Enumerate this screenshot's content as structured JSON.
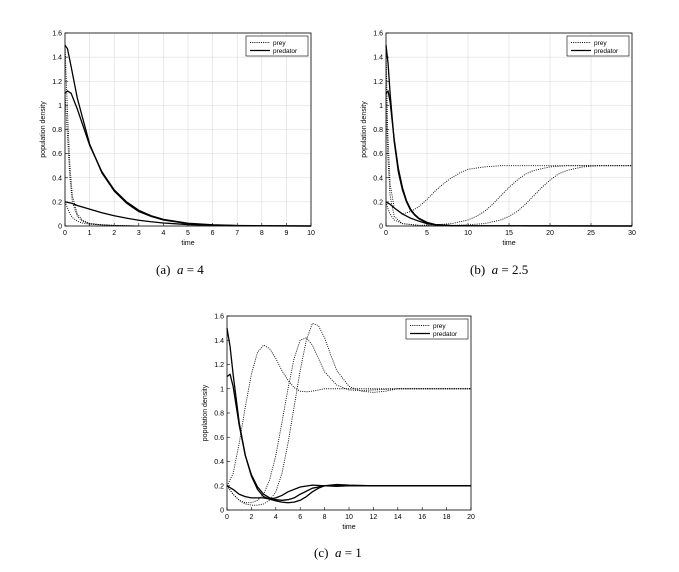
{
  "figure": {
    "panels": [
      {
        "caption": {
          "label": "(a)",
          "variable": "a",
          "eq": "=",
          "value": "4"
        }
      },
      {
        "caption": {
          "label": "(b)",
          "variable": "a",
          "eq": "=",
          "value": "2.5"
        }
      },
      {
        "caption": {
          "label": "(c)",
          "variable": "a",
          "eq": "=",
          "value": "1"
        }
      }
    ]
  },
  "chart_data": [
    {
      "type": "line",
      "title": "",
      "xlabel": "time",
      "ylabel": "population density",
      "xlim": [
        0,
        10
      ],
      "ylim": [
        0,
        1.6
      ],
      "xticks": [
        "0",
        "1",
        "2",
        "3",
        "4",
        "5",
        "6",
        "7",
        "8",
        "9",
        "10"
      ],
      "yticks": [
        "0",
        "0.2",
        "0.4",
        "0.6",
        "0.8",
        "1",
        "1.2",
        "1.4",
        "1.6"
      ],
      "grid": true,
      "legend": {
        "position": "top-right",
        "entries": [
          {
            "name": "prey",
            "style": "dotted"
          },
          {
            "name": "predator",
            "style": "solid"
          }
        ]
      },
      "series": [
        {
          "name": "prey",
          "style": "dotted",
          "x": [
            0,
            0.1,
            0.2,
            0.3,
            0.5,
            0.7,
            1,
            1.5,
            2,
            3
          ],
          "y": [
            1.5,
            0.95,
            0.5,
            0.25,
            0.1,
            0.05,
            0.02,
            0.01,
            0.005,
            0
          ]
        },
        {
          "name": "prey",
          "style": "dotted",
          "x": [
            0,
            0.1,
            0.2,
            0.3,
            0.5,
            0.7,
            1,
            1.5,
            2,
            3
          ],
          "y": [
            1.1,
            0.75,
            0.4,
            0.2,
            0.08,
            0.04,
            0.02,
            0.01,
            0.005,
            0
          ]
        },
        {
          "name": "prey",
          "style": "dotted",
          "x": [
            0,
            0.1,
            0.2,
            0.3,
            0.5,
            0.7,
            1,
            1.5,
            2,
            3
          ],
          "y": [
            0.2,
            0.15,
            0.1,
            0.07,
            0.04,
            0.025,
            0.015,
            0.008,
            0.004,
            0
          ]
        },
        {
          "name": "predator",
          "style": "solid",
          "x": [
            0,
            0.1,
            0.25,
            0.5,
            1,
            1.5,
            2,
            2.5,
            3,
            3.5,
            4,
            5,
            6,
            7,
            8,
            10
          ],
          "y": [
            1.5,
            1.47,
            1.32,
            1.06,
            0.68,
            0.44,
            0.29,
            0.19,
            0.12,
            0.08,
            0.05,
            0.02,
            0.008,
            0.003,
            0.001,
            0
          ]
        },
        {
          "name": "predator",
          "style": "solid",
          "x": [
            0,
            0.1,
            0.25,
            0.5,
            1,
            1.5,
            2,
            2.5,
            3,
            3.5,
            4,
            5,
            6,
            7,
            8,
            10
          ],
          "y": [
            1.1,
            1.12,
            1.1,
            0.97,
            0.67,
            0.45,
            0.3,
            0.2,
            0.13,
            0.085,
            0.055,
            0.023,
            0.01,
            0.004,
            0.002,
            0
          ]
        },
        {
          "name": "predator",
          "style": "solid",
          "x": [
            0,
            0.25,
            0.5,
            1,
            1.5,
            2,
            2.5,
            3,
            3.5,
            4,
            5,
            6,
            7,
            8,
            10
          ],
          "y": [
            0.2,
            0.19,
            0.17,
            0.14,
            0.11,
            0.085,
            0.065,
            0.048,
            0.035,
            0.025,
            0.012,
            0.006,
            0.003,
            0.001,
            0
          ]
        }
      ]
    },
    {
      "type": "line",
      "title": "",
      "xlabel": "time",
      "ylabel": "population density",
      "xlim": [
        0,
        30
      ],
      "ylim": [
        0,
        1.6
      ],
      "xticks": [
        "0",
        "5",
        "10",
        "15",
        "20",
        "25",
        "30"
      ],
      "yticks": [
        "0",
        "0.2",
        "0.4",
        "0.6",
        "0.8",
        "1",
        "1.2",
        "1.4",
        "1.6"
      ],
      "grid": true,
      "legend": {
        "position": "top-right",
        "entries": [
          {
            "name": "prey",
            "style": "dotted"
          },
          {
            "name": "predator",
            "style": "solid"
          }
        ]
      },
      "series": [
        {
          "name": "prey",
          "style": "dotted",
          "x": [
            0,
            0.2,
            0.5,
            1,
            2,
            3,
            4,
            5,
            6,
            7,
            8,
            9,
            10,
            11,
            12,
            14,
            16,
            18,
            20,
            25,
            30
          ],
          "y": [
            1.5,
            0.8,
            0.35,
            0.15,
            0.1,
            0.12,
            0.16,
            0.22,
            0.29,
            0.35,
            0.4,
            0.44,
            0.47,
            0.48,
            0.49,
            0.5,
            0.5,
            0.5,
            0.5,
            0.5,
            0.5
          ]
        },
        {
          "name": "prey",
          "style": "dotted",
          "x": [
            0,
            0.2,
            0.5,
            1,
            2,
            4,
            6,
            8,
            10,
            11,
            12,
            13,
            14,
            15,
            16,
            17,
            18,
            20,
            22,
            25,
            30
          ],
          "y": [
            1.1,
            0.6,
            0.25,
            0.08,
            0.02,
            0.005,
            0.01,
            0.02,
            0.05,
            0.08,
            0.12,
            0.18,
            0.25,
            0.32,
            0.38,
            0.43,
            0.46,
            0.49,
            0.5,
            0.5,
            0.5
          ]
        },
        {
          "name": "prey",
          "style": "dotted",
          "x": [
            0,
            0.2,
            0.5,
            1,
            2,
            4,
            6,
            8,
            10,
            12,
            14,
            15,
            16,
            17,
            18,
            19,
            20,
            21,
            22,
            24,
            26,
            30
          ],
          "y": [
            0.2,
            0.15,
            0.1,
            0.05,
            0.02,
            0.005,
            0.003,
            0.005,
            0.01,
            0.02,
            0.05,
            0.08,
            0.12,
            0.18,
            0.25,
            0.32,
            0.38,
            0.43,
            0.46,
            0.49,
            0.5,
            0.5
          ]
        },
        {
          "name": "predator",
          "style": "solid",
          "x": [
            0,
            0.25,
            0.5,
            1,
            1.5,
            2,
            2.5,
            3,
            3.5,
            4,
            5,
            6,
            8,
            10,
            30
          ],
          "y": [
            1.5,
            1.35,
            1.1,
            0.7,
            0.45,
            0.3,
            0.2,
            0.13,
            0.09,
            0.06,
            0.025,
            0.01,
            0.003,
            0.001,
            0
          ]
        },
        {
          "name": "predator",
          "style": "solid",
          "x": [
            0,
            0.25,
            0.5,
            1,
            1.5,
            2,
            2.5,
            3,
            3.5,
            4,
            5,
            6,
            8,
            10,
            30
          ],
          "y": [
            1.1,
            1.12,
            1.03,
            0.72,
            0.48,
            0.32,
            0.21,
            0.14,
            0.095,
            0.065,
            0.03,
            0.012,
            0.003,
            0.001,
            0
          ]
        },
        {
          "name": "predator",
          "style": "solid",
          "x": [
            0,
            0.5,
            1,
            2,
            3,
            4,
            5,
            6,
            8,
            10,
            30
          ],
          "y": [
            0.2,
            0.18,
            0.15,
            0.1,
            0.065,
            0.04,
            0.02,
            0.01,
            0.003,
            0.001,
            0
          ]
        }
      ]
    },
    {
      "type": "line",
      "title": "",
      "xlabel": "time",
      "ylabel": "population density",
      "xlim": [
        0,
        20
      ],
      "ylim": [
        0,
        1.6
      ],
      "xticks": [
        "0",
        "2",
        "4",
        "6",
        "8",
        "10",
        "12",
        "14",
        "16",
        "18",
        "20"
      ],
      "yticks": [
        "0",
        "0.2",
        "0.4",
        "0.6",
        "0.8",
        "1",
        "1.2",
        "1.4",
        "1.6"
      ],
      "grid": false,
      "legend": {
        "position": "top-right",
        "entries": [
          {
            "name": "prey",
            "style": "dotted"
          },
          {
            "name": "predator",
            "style": "solid"
          }
        ]
      },
      "series": [
        {
          "name": "prey",
          "style": "dotted",
          "x": [
            0,
            0.5,
            1,
            1.5,
            2,
            2.5,
            3,
            3.5,
            4,
            4.5,
            5,
            5.5,
            6,
            6.5,
            7,
            7.5,
            8,
            9,
            10,
            12,
            14,
            16,
            20
          ],
          "y": [
            0.2,
            0.3,
            0.55,
            0.85,
            1.12,
            1.3,
            1.36,
            1.33,
            1.25,
            1.15,
            1.07,
            1.01,
            0.98,
            0.975,
            0.98,
            0.99,
            1.0,
            1.0,
            1.0,
            1.0,
            1.0,
            1.0,
            1.0
          ]
        },
        {
          "name": "prey",
          "style": "dotted",
          "x": [
            0,
            0.5,
            1,
            1.5,
            2,
            2.5,
            3,
            3.5,
            4,
            4.5,
            5,
            5.5,
            6,
            6.5,
            7,
            7.5,
            8,
            9,
            10,
            11,
            12,
            14,
            20
          ],
          "y": [
            0.2,
            0.13,
            0.08,
            0.06,
            0.06,
            0.08,
            0.13,
            0.25,
            0.45,
            0.72,
            1.0,
            1.25,
            1.4,
            1.42,
            1.36,
            1.25,
            1.14,
            1.03,
            0.99,
            0.985,
            0.99,
            1.0,
            1.0
          ]
        },
        {
          "name": "prey",
          "style": "dotted",
          "x": [
            0,
            0.5,
            1,
            1.5,
            2,
            2.5,
            3,
            3.5,
            4,
            4.5,
            5,
            5.5,
            6,
            6.5,
            7,
            7.5,
            8,
            8.5,
            9,
            10,
            11,
            12,
            13,
            14,
            20
          ],
          "y": [
            0.2,
            0.13,
            0.08,
            0.05,
            0.04,
            0.04,
            0.05,
            0.08,
            0.15,
            0.3,
            0.55,
            0.85,
            1.15,
            1.4,
            1.54,
            1.52,
            1.42,
            1.28,
            1.15,
            1.02,
            0.98,
            0.97,
            0.98,
            1.0,
            1.0
          ]
        },
        {
          "name": "predator",
          "style": "solid",
          "x": [
            0,
            0.25,
            0.5,
            1,
            1.5,
            2,
            2.5,
            3,
            3.5,
            4,
            4.5,
            5,
            6,
            7,
            8,
            9,
            10,
            12,
            14,
            20
          ],
          "y": [
            1.5,
            1.35,
            1.12,
            0.72,
            0.45,
            0.28,
            0.17,
            0.11,
            0.09,
            0.1,
            0.12,
            0.15,
            0.19,
            0.205,
            0.2,
            0.195,
            0.2,
            0.2,
            0.2,
            0.2
          ]
        },
        {
          "name": "predator",
          "style": "solid",
          "x": [
            0,
            0.25,
            0.5,
            1,
            1.5,
            2,
            2.5,
            3,
            3.5,
            4,
            4.5,
            5,
            5.5,
            6,
            7,
            8,
            9,
            10,
            12,
            14,
            20
          ],
          "y": [
            1.1,
            1.12,
            1.02,
            0.7,
            0.45,
            0.29,
            0.19,
            0.13,
            0.1,
            0.085,
            0.08,
            0.085,
            0.1,
            0.13,
            0.18,
            0.2,
            0.205,
            0.2,
            0.2,
            0.2,
            0.2
          ]
        },
        {
          "name": "predator",
          "style": "solid",
          "x": [
            0,
            0.5,
            1,
            1.5,
            2,
            2.5,
            3,
            3.5,
            4,
            4.5,
            5,
            5.5,
            6,
            6.5,
            7,
            7.5,
            8,
            9,
            10,
            12,
            14,
            20
          ],
          "y": [
            0.2,
            0.17,
            0.13,
            0.11,
            0.1,
            0.1,
            0.1,
            0.09,
            0.075,
            0.065,
            0.06,
            0.065,
            0.08,
            0.11,
            0.15,
            0.18,
            0.2,
            0.21,
            0.205,
            0.2,
            0.2,
            0.2
          ]
        }
      ]
    }
  ]
}
